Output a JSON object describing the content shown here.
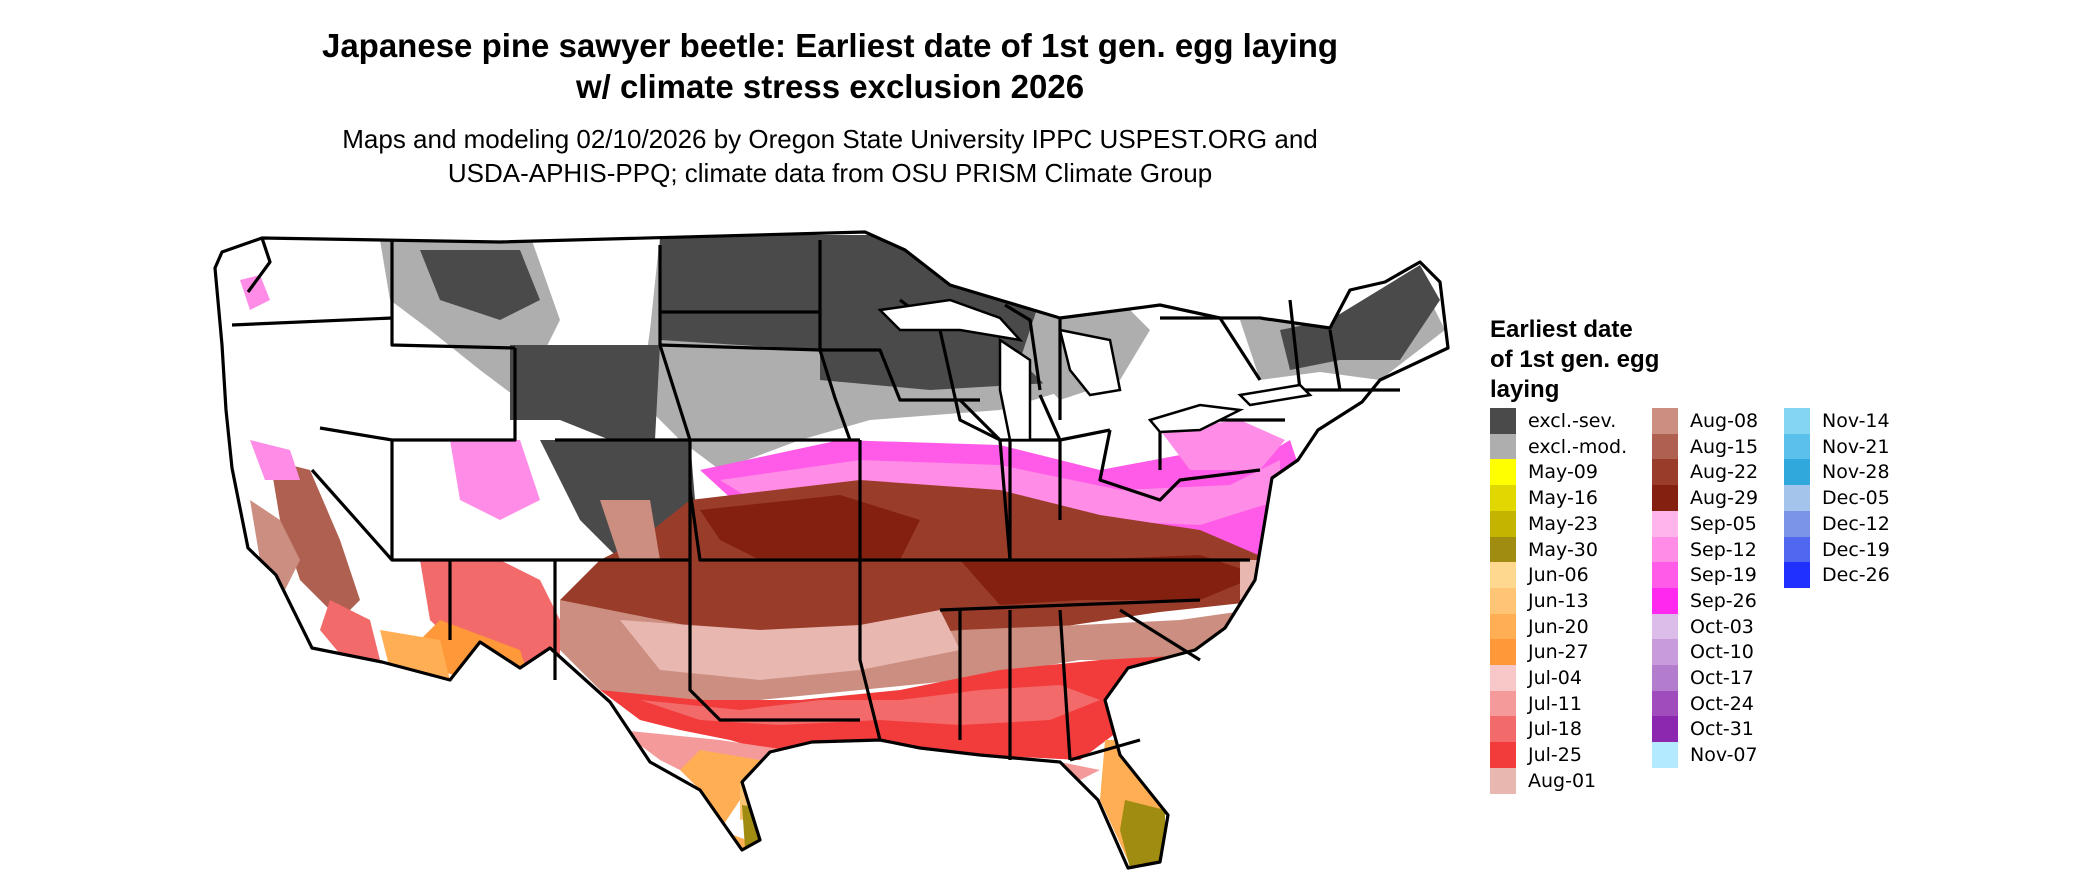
{
  "title_line1": "Japanese pine sawyer beetle: Earliest date of 1st gen. egg laying",
  "title_line2": "w/ climate stress exclusion 2026",
  "subtitle_line1": "Maps and modeling 02/10/2026 by Oregon State University IPPC USPEST.ORG and",
  "subtitle_line2": "USDA-APHIS-PPQ; climate data from OSU PRISM Climate Group",
  "legend": {
    "title_line1": "Earliest date",
    "title_line2": "of 1st gen. egg",
    "title_line3": "laying",
    "items": [
      {
        "label": "excl.-sev.",
        "color": "#4a4a4a"
      },
      {
        "label": "excl.-mod.",
        "color": "#aeaeae"
      },
      {
        "label": "May-09",
        "color": "#ffff00"
      },
      {
        "label": "May-16",
        "color": "#e0d800"
      },
      {
        "label": "May-23",
        "color": "#c4b400"
      },
      {
        "label": "May-30",
        "color": "#a08c10"
      },
      {
        "label": "Jun-06",
        "color": "#ffd890"
      },
      {
        "label": "Jun-13",
        "color": "#ffc474"
      },
      {
        "label": "Jun-20",
        "color": "#ffae54"
      },
      {
        "label": "Jun-27",
        "color": "#ff9838"
      },
      {
        "label": "Jul-04",
        "color": "#f8c8c8"
      },
      {
        "label": "Jul-11",
        "color": "#f49a9a"
      },
      {
        "label": "Jul-18",
        "color": "#f26a6a"
      },
      {
        "label": "Jul-25",
        "color": "#f23c3c"
      },
      {
        "label": "Aug-01",
        "color": "#e8b8b0"
      },
      {
        "label": "Aug-08",
        "color": "#cc8e80"
      },
      {
        "label": "Aug-15",
        "color": "#b06050"
      },
      {
        "label": "Aug-22",
        "color": "#9a3c2a"
      },
      {
        "label": "Aug-29",
        "color": "#842010"
      },
      {
        "label": "Sep-05",
        "color": "#ffb4ec"
      },
      {
        "label": "Sep-12",
        "color": "#ff8ce6"
      },
      {
        "label": "Sep-19",
        "color": "#ff5ae8"
      },
      {
        "label": "Sep-26",
        "color": "#ff28ee"
      },
      {
        "label": "Oct-03",
        "color": "#dcbce8"
      },
      {
        "label": "Oct-10",
        "color": "#c89cdc"
      },
      {
        "label": "Oct-17",
        "color": "#b47ccc"
      },
      {
        "label": "Oct-24",
        "color": "#a04cbc"
      },
      {
        "label": "Oct-31",
        "color": "#8c28b0"
      },
      {
        "label": "Nov-07",
        "color": "#b4eaff"
      },
      {
        "label": "Nov-14",
        "color": "#84d4f4"
      },
      {
        "label": "Nov-21",
        "color": "#5cc0ec"
      },
      {
        "label": "Nov-28",
        "color": "#30a8dc"
      },
      {
        "label": "Dec-05",
        "color": "#a4c4ec"
      },
      {
        "label": "Dec-12",
        "color": "#7c94e8"
      },
      {
        "label": "Dec-19",
        "color": "#5068f0"
      },
      {
        "label": "Dec-26",
        "color": "#2030ff"
      }
    ]
  }
}
